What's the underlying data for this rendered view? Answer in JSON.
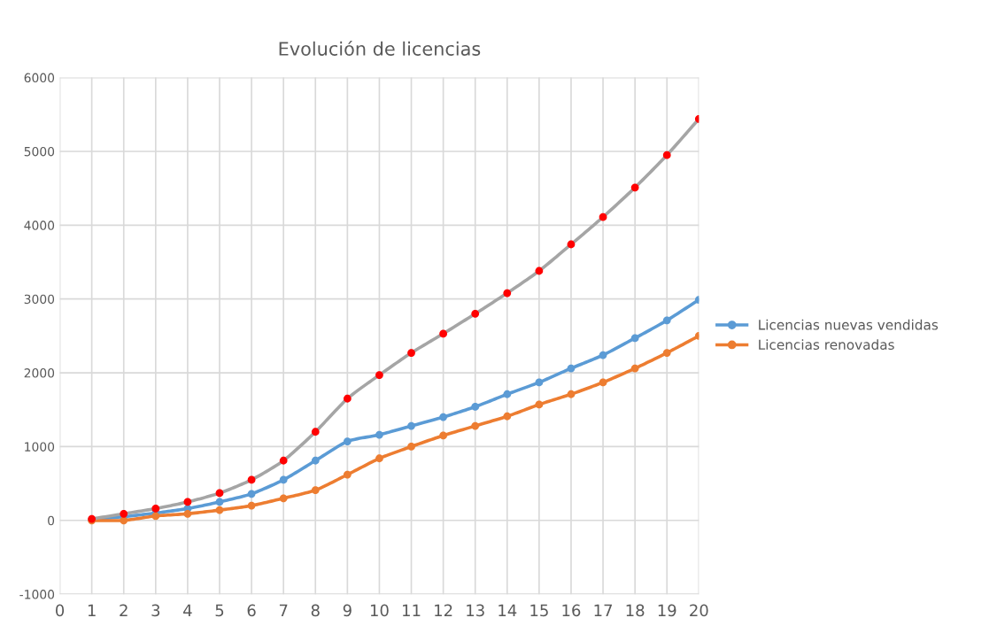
{
  "chart_data": {
    "type": "line",
    "title": "Evolución de licencias",
    "x": [
      1,
      2,
      3,
      4,
      5,
      6,
      7,
      8,
      9,
      10,
      11,
      12,
      13,
      14,
      15,
      16,
      17,
      18,
      19,
      20
    ],
    "series": [
      {
        "name": "Licencias nuevas vendidas",
        "color": "#5b9bd5",
        "values": [
          10,
          50,
          100,
          160,
          250,
          360,
          550,
          810,
          1070,
          1160,
          1280,
          1400,
          1540,
          1710,
          1870,
          2060,
          2240,
          2470,
          2710,
          2990
        ]
      },
      {
        "name": "Licencias renovadas",
        "color": "#ed7d31",
        "values": [
          0,
          0,
          60,
          90,
          140,
          200,
          300,
          410,
          620,
          840,
          1000,
          1150,
          1280,
          1410,
          1570,
          1710,
          1870,
          2060,
          2270,
          2500
        ]
      },
      {
        "color": "#a5a5a5",
        "colors": [
          "#ff0000",
          "#ff0000",
          "#ff0000",
          "#ff0000",
          "#ff0000",
          "#ff0000",
          "#ff0000",
          "#ff0000",
          "#ff0000",
          "#ff0000",
          "#ff0000",
          "#ff0000",
          "#ff0000",
          "#ff0000",
          "#ff0000",
          "#ff0000",
          "#ff0000",
          "#ff0000",
          "#ff0000",
          "#ff0000"
        ],
        "values": [
          20,
          90,
          160,
          250,
          370,
          550,
          810,
          1200,
          1650,
          1970,
          2270,
          2530,
          2800,
          3080,
          3380,
          3740,
          4110,
          4510,
          4950,
          5440
        ]
      }
    ],
    "xlim": [
      0,
      20
    ],
    "xticks": [
      0,
      1,
      2,
      3,
      4,
      5,
      6,
      7,
      8,
      9,
      10,
      11,
      12,
      13,
      14,
      15,
      16,
      17,
      18,
      19,
      20
    ],
    "ylim": [
      -1000,
      6000
    ],
    "yticks": [
      -1000,
      0,
      1000,
      2000,
      3000,
      4000,
      5000,
      6000
    ],
    "grid": true,
    "legend": "right",
    "marker": "circle",
    "line_style": "solid"
  }
}
